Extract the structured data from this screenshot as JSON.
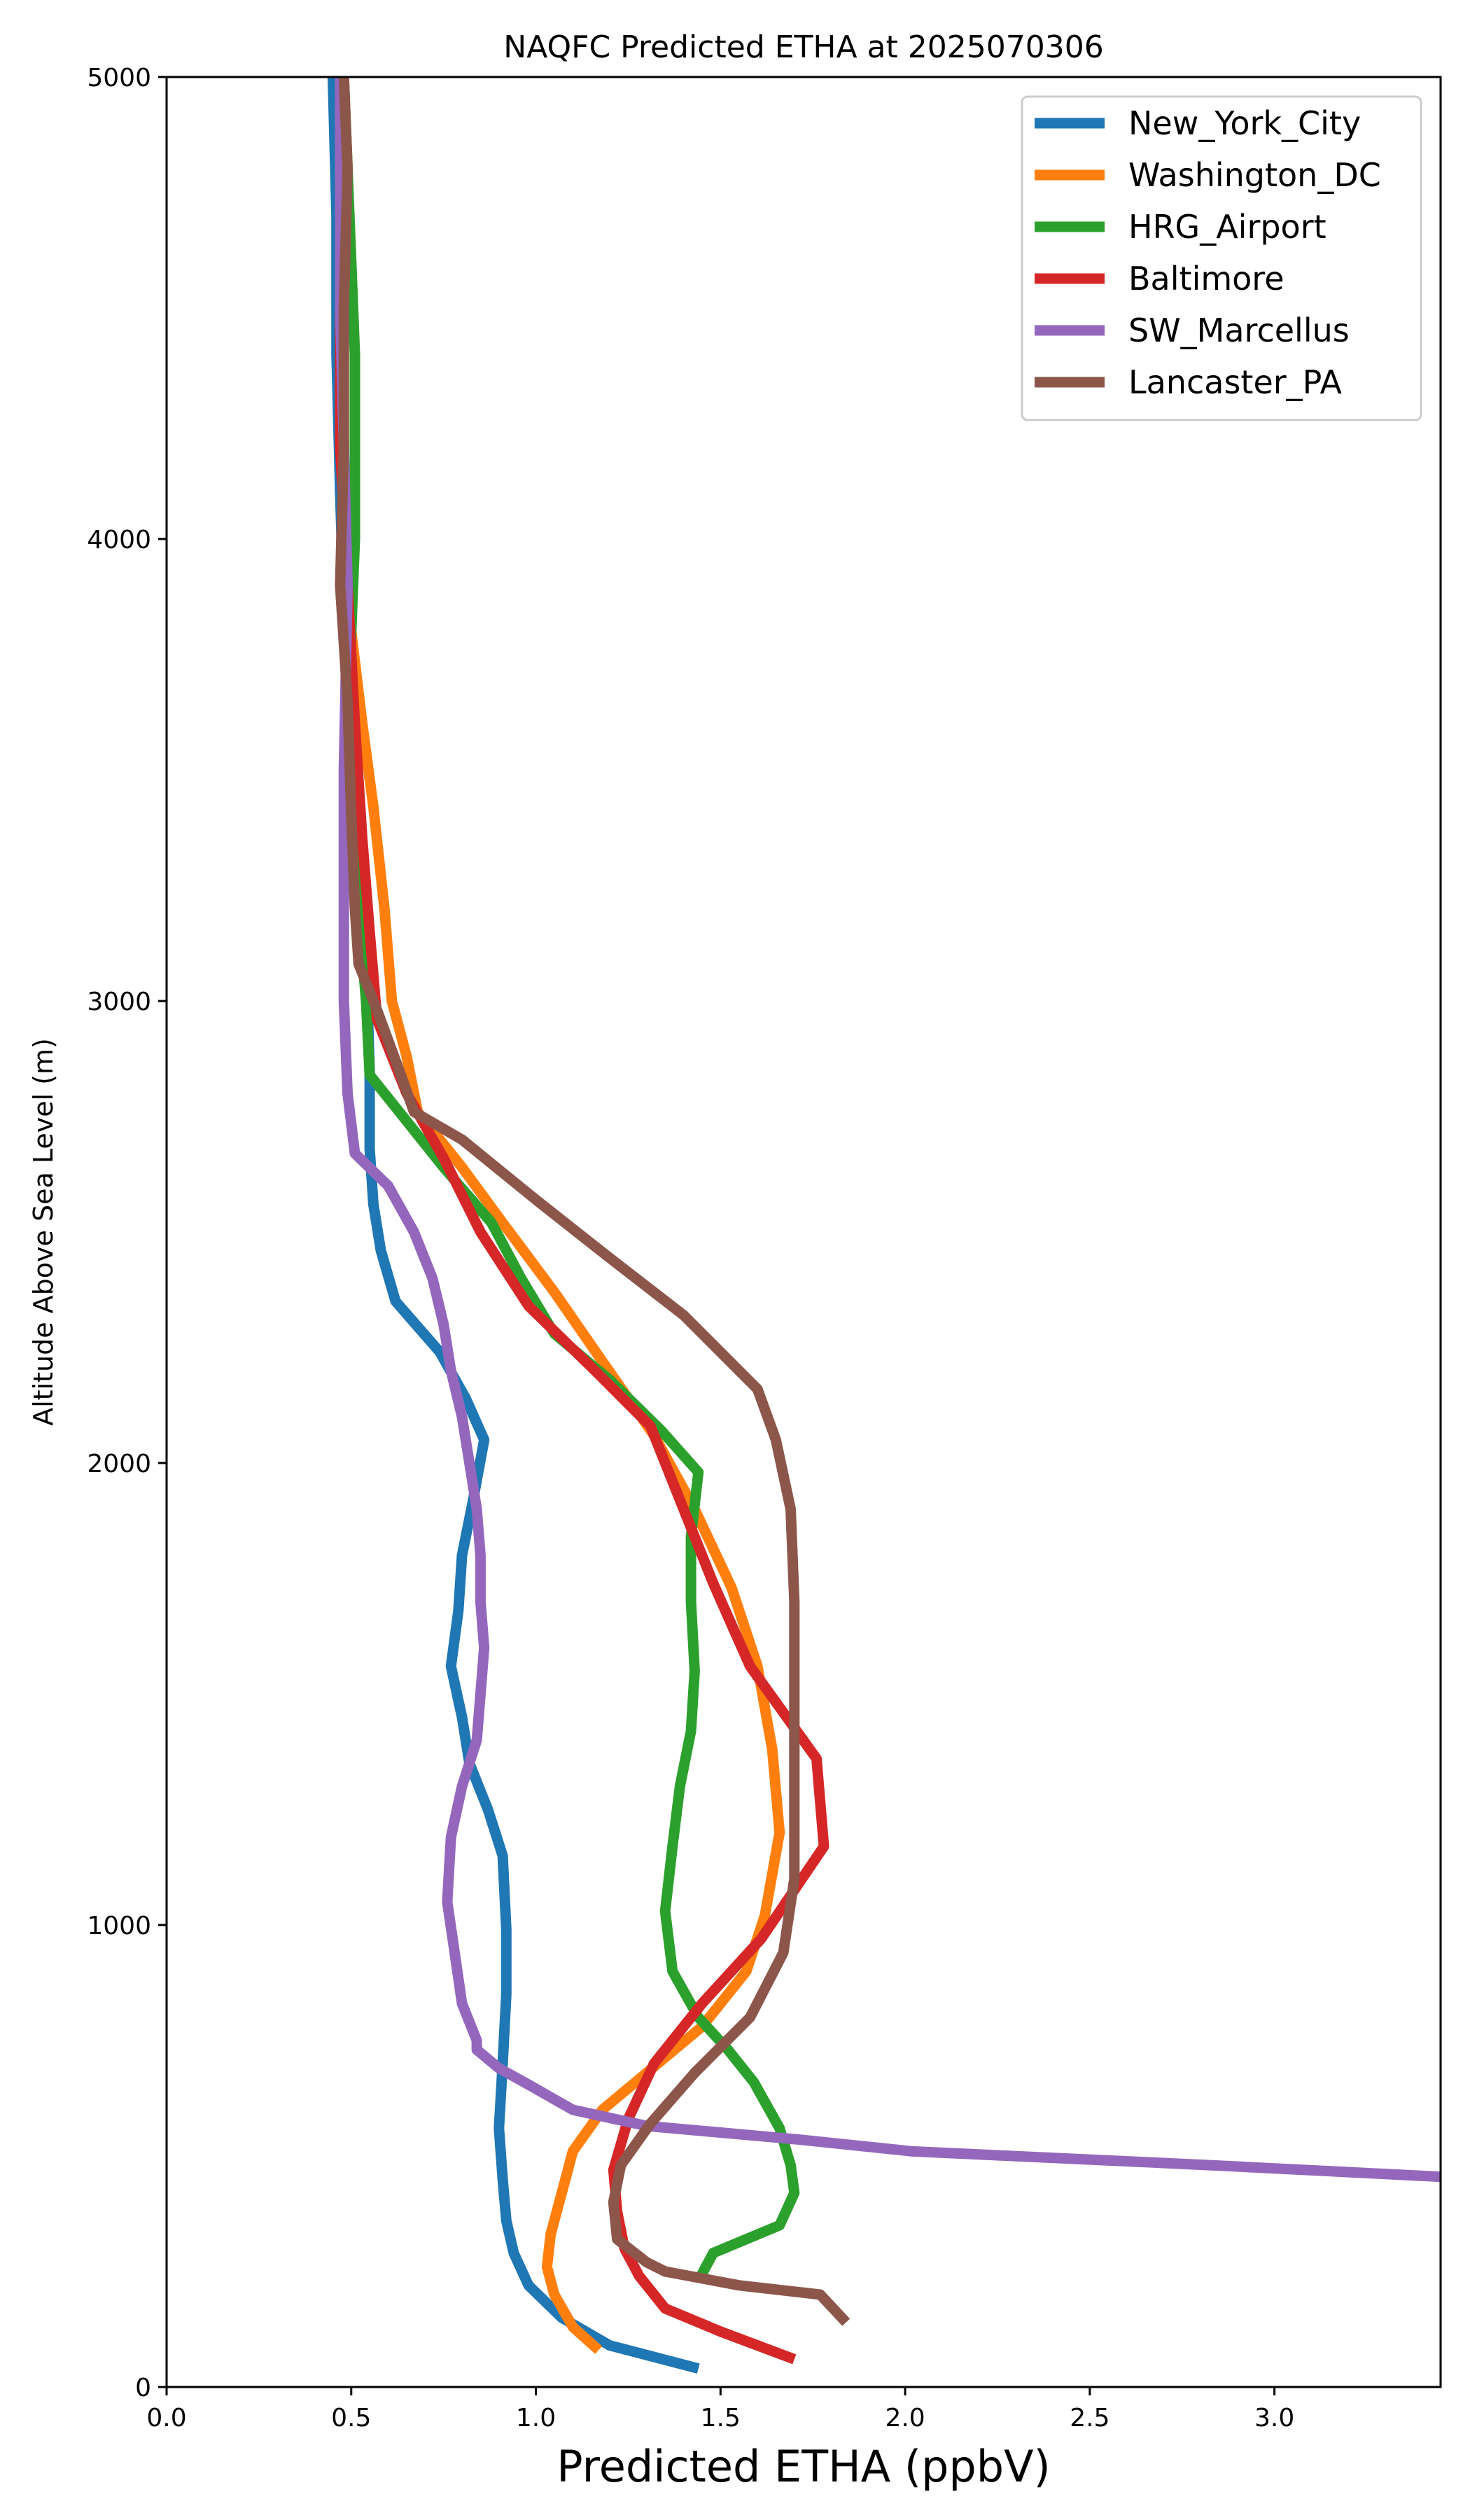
{
  "chart_data": {
    "type": "line",
    "title": "NAQFC Predicted ETHA at 2025070306",
    "xlabel": "Predicted ETHA (ppbV)",
    "ylabel": "Altitude Above Sea Level (m)",
    "xlim": [
      0,
      3.45
    ],
    "ylim": [
      0,
      5000
    ],
    "xticks": [
      "0.0",
      "0.5",
      "1.0",
      "1.5",
      "2.0",
      "2.5",
      "3.0"
    ],
    "yticks": [
      "0",
      "1000",
      "2000",
      "3000",
      "4000",
      "5000"
    ],
    "legend_position": "top-right",
    "grid": false,
    "series": [
      {
        "name": "New_York_City",
        "color": "#1f77b4",
        "points": [
          [
            1.44,
            40
          ],
          [
            1.2,
            90
          ],
          [
            1.07,
            150
          ],
          [
            0.98,
            220
          ],
          [
            0.94,
            290
          ],
          [
            0.92,
            360
          ],
          [
            0.91,
            450
          ],
          [
            0.9,
            560
          ],
          [
            0.91,
            700
          ],
          [
            0.92,
            850
          ],
          [
            0.92,
            990
          ],
          [
            0.91,
            1150
          ],
          [
            0.87,
            1250
          ],
          [
            0.82,
            1350
          ],
          [
            0.8,
            1450
          ],
          [
            0.77,
            1560
          ],
          [
            0.79,
            1680
          ],
          [
            0.8,
            1800
          ],
          [
            0.83,
            1920
          ],
          [
            0.86,
            2050
          ],
          [
            0.81,
            2140
          ],
          [
            0.74,
            2240
          ],
          [
            0.62,
            2350
          ],
          [
            0.58,
            2460
          ],
          [
            0.56,
            2560
          ],
          [
            0.55,
            2680
          ],
          [
            0.55,
            2850
          ],
          [
            0.54,
            3100
          ],
          [
            0.51,
            3350
          ],
          [
            0.49,
            3600
          ],
          [
            0.48,
            3850
          ],
          [
            0.47,
            4100
          ],
          [
            0.46,
            4400
          ],
          [
            0.46,
            4700
          ],
          [
            0.45,
            5000
          ]
        ]
      },
      {
        "name": "Washington_DC",
        "color": "#ff7f0e",
        "points": [
          [
            1.17,
            80
          ],
          [
            1.1,
            130
          ],
          [
            1.05,
            200
          ],
          [
            1.03,
            260
          ],
          [
            1.04,
            330
          ],
          [
            1.07,
            420
          ],
          [
            1.1,
            510
          ],
          [
            1.18,
            600
          ],
          [
            1.3,
            680
          ],
          [
            1.45,
            780
          ],
          [
            1.57,
            900
          ],
          [
            1.62,
            1020
          ],
          [
            1.66,
            1200
          ],
          [
            1.64,
            1380
          ],
          [
            1.6,
            1560
          ],
          [
            1.53,
            1730
          ],
          [
            1.43,
            1900
          ],
          [
            1.32,
            2060
          ],
          [
            1.18,
            2220
          ],
          [
            1.05,
            2370
          ],
          [
            0.91,
            2520
          ],
          [
            0.8,
            2640
          ],
          [
            0.68,
            2760
          ],
          [
            0.65,
            2880
          ],
          [
            0.61,
            3000
          ],
          [
            0.59,
            3200
          ],
          [
            0.56,
            3420
          ],
          [
            0.53,
            3600
          ],
          [
            0.5,
            3800
          ],
          [
            0.48,
            4050
          ],
          [
            0.48,
            4300
          ],
          [
            0.48,
            4550
          ],
          [
            0.49,
            4800
          ],
          [
            0.48,
            5000
          ]
        ]
      },
      {
        "name": "HRG_Airport",
        "color": "#2ca02c",
        "points": [
          [
            1.44,
            230
          ],
          [
            1.48,
            290
          ],
          [
            1.66,
            350
          ],
          [
            1.7,
            420
          ],
          [
            1.69,
            480
          ],
          [
            1.66,
            560
          ],
          [
            1.59,
            660
          ],
          [
            1.52,
            730
          ],
          [
            1.44,
            800
          ],
          [
            1.37,
            900
          ],
          [
            1.35,
            1030
          ],
          [
            1.37,
            1170
          ],
          [
            1.39,
            1300
          ],
          [
            1.42,
            1420
          ],
          [
            1.43,
            1550
          ],
          [
            1.42,
            1700
          ],
          [
            1.42,
            1840
          ],
          [
            1.44,
            1980
          ],
          [
            1.34,
            2070
          ],
          [
            1.2,
            2180
          ],
          [
            1.05,
            2280
          ],
          [
            0.96,
            2400
          ],
          [
            0.88,
            2520
          ],
          [
            0.75,
            2640
          ],
          [
            0.65,
            2740
          ],
          [
            0.55,
            2840
          ],
          [
            0.54,
            3000
          ],
          [
            0.52,
            3200
          ],
          [
            0.5,
            3400
          ],
          [
            0.49,
            3600
          ],
          [
            0.5,
            3800
          ],
          [
            0.51,
            4000
          ],
          [
            0.51,
            4200
          ],
          [
            0.51,
            4400
          ],
          [
            0.5,
            4600
          ],
          [
            0.49,
            4800
          ],
          [
            0.48,
            5000
          ]
        ]
      },
      {
        "name": "Baltimore",
        "color": "#d62728",
        "points": [
          [
            1.7,
            60
          ],
          [
            1.5,
            120
          ],
          [
            1.35,
            170
          ],
          [
            1.28,
            240
          ],
          [
            1.24,
            300
          ],
          [
            1.22,
            380
          ],
          [
            1.21,
            470
          ],
          [
            1.25,
            580
          ],
          [
            1.32,
            700
          ],
          [
            1.45,
            830
          ],
          [
            1.61,
            970
          ],
          [
            1.78,
            1170
          ],
          [
            1.76,
            1360
          ],
          [
            1.58,
            1560
          ],
          [
            1.48,
            1740
          ],
          [
            1.39,
            1920
          ],
          [
            1.31,
            2080
          ],
          [
            1.16,
            2200
          ],
          [
            0.98,
            2340
          ],
          [
            0.85,
            2500
          ],
          [
            0.75,
            2660
          ],
          [
            0.65,
            2800
          ],
          [
            0.57,
            2960
          ],
          [
            0.55,
            3150
          ],
          [
            0.53,
            3350
          ],
          [
            0.51,
            3600
          ],
          [
            0.49,
            3900
          ],
          [
            0.47,
            4200
          ],
          [
            0.47,
            4500
          ],
          [
            0.48,
            4800
          ],
          [
            0.48,
            5000
          ]
        ]
      },
      {
        "name": "SW_Marcellus",
        "color": "#9467bd",
        "points": [
          [
            3.45,
            455
          ],
          [
            2.83,
            480
          ],
          [
            2.02,
            510
          ],
          [
            1.72,
            535
          ],
          [
            1.3,
            565
          ],
          [
            1.1,
            600
          ],
          [
            0.99,
            650
          ],
          [
            0.9,
            690
          ],
          [
            0.84,
            730
          ],
          [
            0.84,
            750
          ],
          [
            0.8,
            830
          ],
          [
            0.78,
            940
          ],
          [
            0.76,
            1050
          ],
          [
            0.77,
            1190
          ],
          [
            0.8,
            1300
          ],
          [
            0.84,
            1400
          ],
          [
            0.85,
            1500
          ],
          [
            0.86,
            1600
          ],
          [
            0.85,
            1700
          ],
          [
            0.85,
            1800
          ],
          [
            0.84,
            1900
          ],
          [
            0.82,
            2000
          ],
          [
            0.8,
            2100
          ],
          [
            0.77,
            2200
          ],
          [
            0.75,
            2300
          ],
          [
            0.72,
            2400
          ],
          [
            0.67,
            2500
          ],
          [
            0.6,
            2600
          ],
          [
            0.51,
            2670
          ],
          [
            0.49,
            2800
          ],
          [
            0.48,
            3000
          ],
          [
            0.48,
            3200
          ],
          [
            0.48,
            3500
          ],
          [
            0.49,
            3900
          ],
          [
            0.48,
            4200
          ],
          [
            0.47,
            4500
          ],
          [
            0.47,
            4800
          ],
          [
            0.47,
            5000
          ]
        ]
      },
      {
        "name": "Lancaster_PA",
        "color": "#8c564b",
        "points": [
          [
            1.84,
            140
          ],
          [
            1.77,
            200
          ],
          [
            1.55,
            220
          ],
          [
            1.35,
            250
          ],
          [
            1.3,
            270
          ],
          [
            1.22,
            320
          ],
          [
            1.21,
            400
          ],
          [
            1.23,
            480
          ],
          [
            1.31,
            570
          ],
          [
            1.43,
            680
          ],
          [
            1.58,
            800
          ],
          [
            1.67,
            940
          ],
          [
            1.7,
            1100
          ],
          [
            1.7,
            1300
          ],
          [
            1.7,
            1500
          ],
          [
            1.7,
            1700
          ],
          [
            1.69,
            1900
          ],
          [
            1.65,
            2050
          ],
          [
            1.6,
            2160
          ],
          [
            1.4,
            2320
          ],
          [
            1.19,
            2450
          ],
          [
            1.0,
            2570
          ],
          [
            0.8,
            2700
          ],
          [
            0.67,
            2760
          ],
          [
            0.63,
            2850
          ],
          [
            0.57,
            2980
          ],
          [
            0.52,
            3080
          ],
          [
            0.51,
            3200
          ],
          [
            0.5,
            3400
          ],
          [
            0.49,
            3650
          ],
          [
            0.47,
            3900
          ],
          [
            0.48,
            4200
          ],
          [
            0.48,
            4500
          ],
          [
            0.49,
            4800
          ],
          [
            0.48,
            5000
          ]
        ]
      }
    ]
  }
}
